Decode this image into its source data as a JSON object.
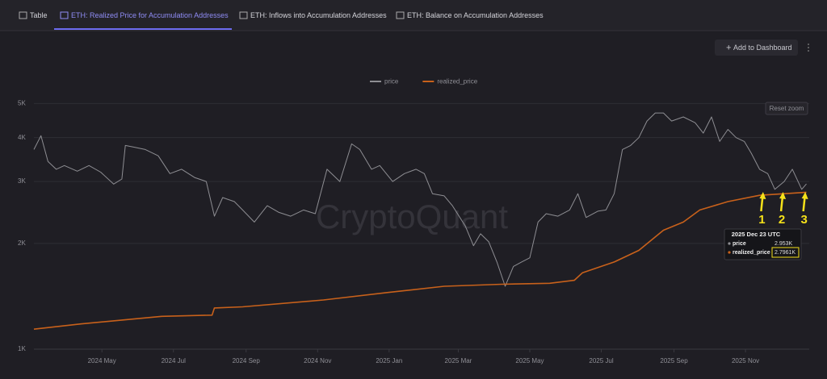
{
  "ui": {
    "tabs": [
      "Table",
      "ETH: Realized Price for Accumulation Addresses",
      "ETH: Inflows into Accumulation Addresses",
      "ETH: Balance on Accumulation Addresses"
    ],
    "active_tab": 1,
    "add_button": "Add to Dashboard",
    "reset_zoom": "Reset zoom",
    "watermark": "CryptoQuant"
  },
  "chart_data": {
    "type": "line",
    "log_scale": true,
    "grid": true,
    "legend": "top",
    "ylim": [
      1000,
      5200
    ],
    "yticks": [
      {
        "value": 1000,
        "label": "1K"
      },
      {
        "value": 2000,
        "label": "2K"
      },
      {
        "value": 3000,
        "label": "3K"
      },
      {
        "value": 4000,
        "label": "4K"
      },
      {
        "value": 5000,
        "label": "5K"
      }
    ],
    "xlim": [
      "2024-03-04",
      "2025-12-24"
    ],
    "xticks": [
      {
        "value": "2024-05-01",
        "label": "2024 May"
      },
      {
        "value": "2024-07-01",
        "label": "2024 Jul"
      },
      {
        "value": "2024-09-01",
        "label": "2024 Sep"
      },
      {
        "value": "2024-11-01",
        "label": "2024 Nov"
      },
      {
        "value": "2025-01-01",
        "label": "2025 Jan"
      },
      {
        "value": "2025-03-01",
        "label": "2025 Mar"
      },
      {
        "value": "2025-05-01",
        "label": "2025 May"
      },
      {
        "value": "2025-07-01",
        "label": "2025 Jul"
      },
      {
        "value": "2025-09-01",
        "label": "2025 Sep"
      },
      {
        "value": "2025-11-01",
        "label": "2025 Nov"
      }
    ],
    "series": [
      {
        "name": "price",
        "color": "#8e8e93",
        "x": [
          "2024-03-04",
          "2024-03-10",
          "2024-03-16",
          "2024-03-23",
          "2024-03-30",
          "2024-04-10",
          "2024-04-20",
          "2024-04-30",
          "2024-05-11",
          "2024-05-18",
          "2024-05-21",
          "2024-05-28",
          "2024-06-07",
          "2024-06-18",
          "2024-06-28",
          "2024-07-08",
          "2024-07-19",
          "2024-07-29",
          "2024-08-05",
          "2024-08-12",
          "2024-08-22",
          "2024-08-29",
          "2024-09-08",
          "2024-09-19",
          "2024-09-29",
          "2024-10-09",
          "2024-10-20",
          "2024-10-30",
          "2024-11-09",
          "2024-11-20",
          "2024-11-30",
          "2024-12-07",
          "2024-12-17",
          "2024-12-24",
          "2025-01-04",
          "2025-01-14",
          "2025-01-24",
          "2025-01-31",
          "2025-02-07",
          "2025-02-17",
          "2025-02-24",
          "2025-03-07",
          "2025-03-14",
          "2025-03-20",
          "2025-03-27",
          "2025-04-03",
          "2025-04-10",
          "2025-04-17",
          "2025-04-24",
          "2025-05-01",
          "2025-05-08",
          "2025-05-15",
          "2025-05-25",
          "2025-06-04",
          "2025-06-11",
          "2025-06-18",
          "2025-06-28",
          "2025-07-05",
          "2025-07-12",
          "2025-07-19",
          "2025-07-26",
          "2025-08-02",
          "2025-08-09",
          "2025-08-16",
          "2025-08-23",
          "2025-08-30",
          "2025-09-09",
          "2025-09-19",
          "2025-09-26",
          "2025-10-03",
          "2025-10-10",
          "2025-10-17",
          "2025-10-24",
          "2025-10-31",
          "2025-11-06",
          "2025-11-13",
          "2025-11-20",
          "2025-11-26",
          "2025-12-04",
          "2025-12-11",
          "2025-12-19",
          "2025-12-23"
        ],
        "values": [
          3700,
          4050,
          3420,
          3250,
          3330,
          3210,
          3330,
          3190,
          2950,
          3050,
          3800,
          3760,
          3700,
          3550,
          3160,
          3250,
          3080,
          3000,
          2390,
          2700,
          2630,
          2490,
          2300,
          2560,
          2450,
          2390,
          2490,
          2430,
          3250,
          3000,
          3840,
          3700,
          3250,
          3330,
          3000,
          3160,
          3250,
          3160,
          2770,
          2730,
          2560,
          2240,
          1970,
          2130,
          2020,
          1770,
          1510,
          1720,
          1770,
          1820,
          2300,
          2430,
          2390,
          2490,
          2770,
          2370,
          2470,
          2490,
          2770,
          3700,
          3800,
          4000,
          4460,
          4700,
          4700,
          4460,
          4580,
          4410,
          4120,
          4580,
          3900,
          4220,
          4000,
          3900,
          3610,
          3250,
          3160,
          2850,
          3000,
          3250,
          2850,
          2953
        ]
      },
      {
        "name": "realized_price",
        "color": "#c8611b",
        "x": [
          "2024-03-04",
          "2024-04-13",
          "2024-06-21",
          "2024-08-03",
          "2024-08-05",
          "2024-08-29",
          "2024-11-06",
          "2024-12-31",
          "2025-02-17",
          "2025-04-07",
          "2025-05-18",
          "2025-06-08",
          "2025-06-15",
          "2025-07-12",
          "2025-08-02",
          "2025-08-23",
          "2025-09-09",
          "2025-09-23",
          "2025-10-17",
          "2025-11-13",
          "2025-12-23"
        ],
        "values": [
          1140,
          1180,
          1240,
          1250,
          1310,
          1320,
          1380,
          1450,
          1510,
          1530,
          1540,
          1570,
          1650,
          1770,
          1910,
          2180,
          2300,
          2490,
          2630,
          2740,
          2796.1
        ]
      }
    ],
    "tooltip": {
      "title": "2025 Dec 23 UTC",
      "value_labels": [
        "2.953K",
        "2.7961K"
      ]
    },
    "annotations": [
      {
        "text": "1",
        "x": "2025-11-15"
      },
      {
        "text": "2",
        "x": "2025-12-02"
      },
      {
        "text": "3",
        "x": "2025-12-21"
      }
    ]
  }
}
